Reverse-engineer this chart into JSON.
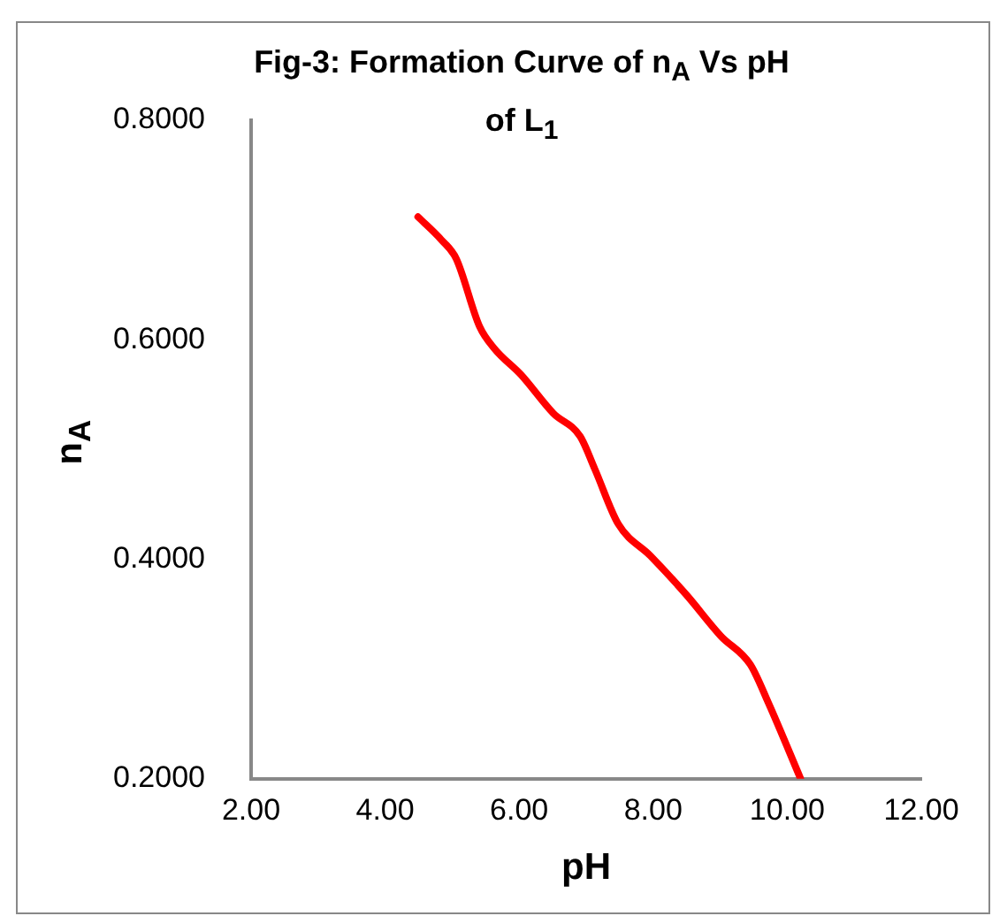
{
  "chart_data": {
    "type": "line",
    "title": "Fig-3: Formation Curve of n$_{A}$ Vs pH of L$_{1}$",
    "xlabel": "pH",
    "ylabel": "n$_{A}$",
    "series": [
      {
        "color": "#ff0000",
        "x": [
          4.49,
          4.84,
          5.06,
          5.41,
          5.63,
          6.03,
          6.51,
          6.91,
          7.13,
          7.48,
          7.96,
          8.49,
          9.01,
          9.45,
          9.72,
          10.2
        ],
        "values": [
          0.712,
          0.691,
          0.674,
          0.612,
          0.592,
          0.568,
          0.533,
          0.512,
          0.482,
          0.432,
          0.403,
          0.368,
          0.33,
          0.304,
          0.269,
          0.2
        ]
      }
    ],
    "xlim": [
      2,
      12
    ],
    "xticks": [
      {
        "value": 2,
        "label": "2.00"
      },
      {
        "value": 4,
        "label": "4.00"
      },
      {
        "value": 6,
        "label": "6.00"
      },
      {
        "value": 8,
        "label": "8.00"
      },
      {
        "value": 10,
        "label": "10.00"
      },
      {
        "value": 12,
        "label": "12.00"
      }
    ],
    "ylim": [
      0.2,
      0.8
    ],
    "yticks": [
      {
        "value": 0.2,
        "label": "0.2000"
      },
      {
        "value": 0.4,
        "label": "0.4000"
      },
      {
        "value": 0.6,
        "label": "0.6000"
      },
      {
        "value": 0.8,
        "label": "0.8000"
      }
    ],
    "grid": false,
    "legend": false,
    "marker": "none",
    "line_style": "solid"
  }
}
